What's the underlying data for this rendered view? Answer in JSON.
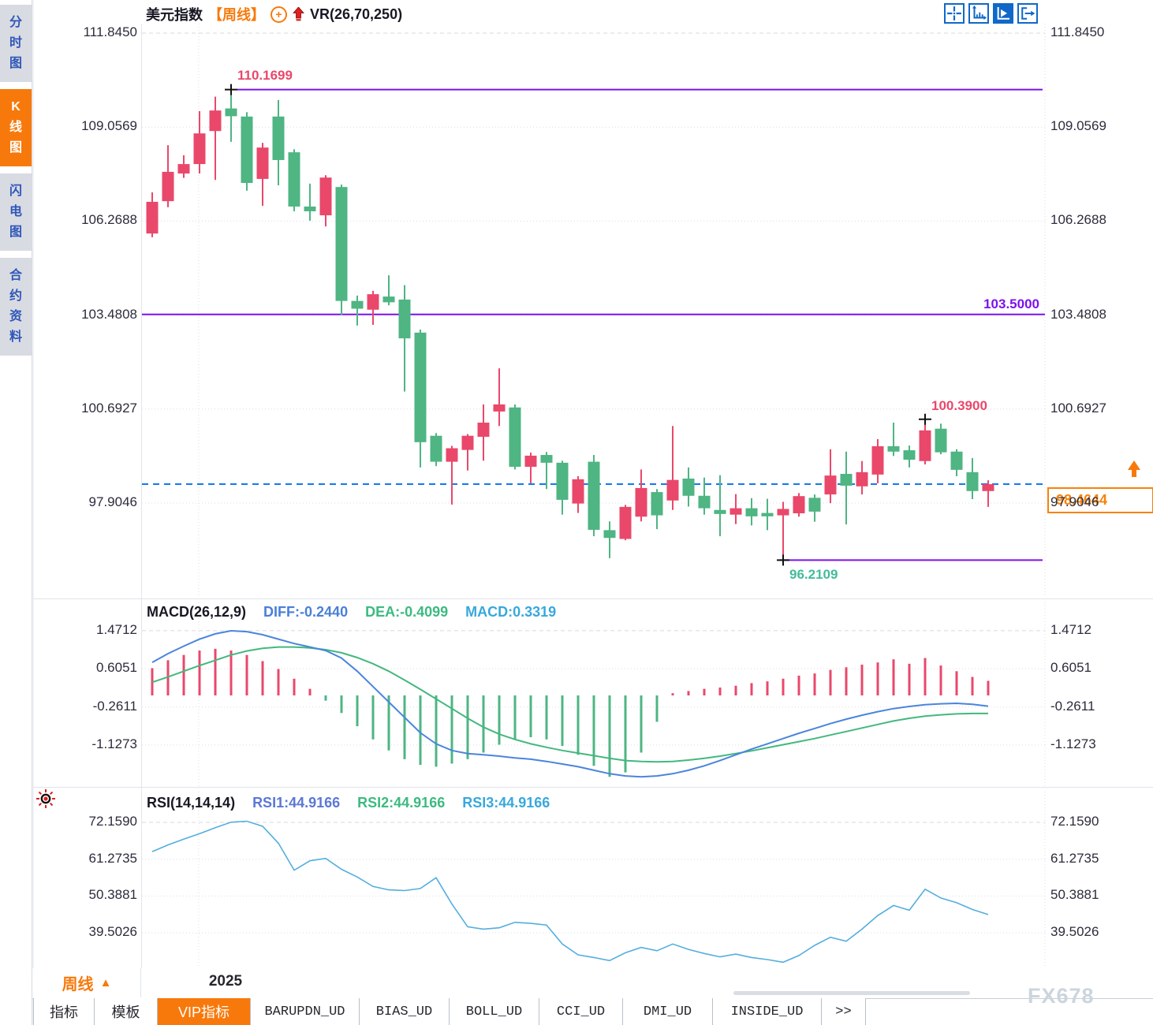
{
  "header": {
    "symbol": "美元指数",
    "period": "【周线】",
    "vr": "VR(26,70,250)"
  },
  "toolbar": {
    "icons": [
      {
        "name": "crosshair-icon",
        "active": false
      },
      {
        "name": "axis-scale-icon",
        "active": false
      },
      {
        "name": "auto-scroll-icon",
        "active": true
      },
      {
        "name": "jump-latest-icon",
        "active": false
      }
    ]
  },
  "sidebar": {
    "items": [
      {
        "label": "分时图",
        "active": false
      },
      {
        "label": "K线图",
        "active": true
      },
      {
        "label": "闪电图",
        "active": false
      },
      {
        "label": "合约资料",
        "active": false
      }
    ]
  },
  "main_chart": {
    "y_axis_labels": [
      "111.8450",
      "109.0569",
      "106.2688",
      "103.4808",
      "100.6927",
      "97.9046"
    ],
    "labels": {
      "resistance": "110.1699",
      "mid": "103.5000",
      "support": "96.2109",
      "swing_high": "100.3900",
      "last_price": "98.4644"
    }
  },
  "macd": {
    "title": "MACD(26,12,9)",
    "diff_label": "DIFF:-0.2440",
    "dea_label": "DEA:-0.4099",
    "macd_label": "MACD:0.3319",
    "y_axis_labels": [
      "1.4712",
      "0.6051",
      "-0.2611",
      "-1.1273"
    ]
  },
  "rsi": {
    "title": "RSI(14,14,14)",
    "r1": "RSI1:44.9166",
    "r2": "RSI2:44.9166",
    "r3": "RSI3:44.9166",
    "y_axis_labels": [
      "72.1590",
      "61.2735",
      "50.3881",
      "39.5026"
    ]
  },
  "bottom": {
    "period": "周线",
    "year": "2025",
    "tabs": [
      {
        "label": "指标",
        "active": false,
        "mono": false
      },
      {
        "label": "模板",
        "active": false,
        "mono": false
      },
      {
        "label": "VIP指标",
        "active": true,
        "mono": false
      },
      {
        "label": "BARUPDN_UD",
        "active": false,
        "mono": true
      },
      {
        "label": "BIAS_UD",
        "active": false,
        "mono": true
      },
      {
        "label": "BOLL_UD",
        "active": false,
        "mono": true
      },
      {
        "label": "CCI_UD",
        "active": false,
        "mono": true
      },
      {
        "label": "DMI_UD",
        "active": false,
        "mono": true
      },
      {
        "label": "INSIDE_UD",
        "active": false,
        "mono": true
      },
      {
        "label": ">>",
        "active": false,
        "mono": true
      }
    ]
  },
  "watermark": "FX678",
  "colors": {
    "up": "#e9486b",
    "down": "#4eb583",
    "purple": "#7c10ee",
    "dash_blue": "#1478f0",
    "orange": "#f8790b",
    "diff_blue": "#4a85dc",
    "dea_green": "#43b87e",
    "rsi_line": "#54aede"
  },
  "chart_data": {
    "type": "candlestick",
    "symbol": "美元指数",
    "period": "周线",
    "price_axis": [
      111.845,
      109.0569,
      106.2688,
      103.4808,
      100.6927,
      97.9046
    ],
    "x_axis_labels": [
      "2025"
    ],
    "levels": {
      "resistance": 110.1699,
      "mid": 103.5,
      "support": 96.2109,
      "swing_high": 100.39,
      "last_price": 98.4644
    },
    "candles_ohlc": [
      [
        105.9,
        107.12,
        105.79,
        106.84
      ],
      [
        106.86,
        108.52,
        106.68,
        107.73
      ],
      [
        107.68,
        108.22,
        107.55,
        107.96
      ],
      [
        107.96,
        109.53,
        107.68,
        108.87
      ],
      [
        108.94,
        109.96,
        107.49,
        109.55
      ],
      [
        109.61,
        110.1699,
        108.62,
        109.38
      ],
      [
        109.37,
        109.5,
        107.17,
        107.4
      ],
      [
        107.52,
        108.59,
        106.72,
        108.45
      ],
      [
        109.37,
        109.86,
        107.33,
        108.08
      ],
      [
        108.31,
        108.4,
        106.56,
        106.7
      ],
      [
        106.7,
        107.38,
        106.28,
        106.56
      ],
      [
        106.44,
        107.63,
        106.11,
        107.56
      ],
      [
        107.28,
        107.35,
        103.48,
        103.9
      ],
      [
        103.9,
        104.06,
        103.17,
        103.67
      ],
      [
        103.64,
        104.2,
        103.19,
        104.1
      ],
      [
        104.03,
        104.66,
        103.77,
        103.86
      ],
      [
        103.94,
        104.37,
        101.21,
        102.79
      ],
      [
        102.96,
        103.05,
        98.96,
        99.71
      ],
      [
        99.9,
        99.98,
        99.0,
        99.13
      ],
      [
        99.13,
        99.6,
        97.86,
        99.53
      ],
      [
        99.48,
        99.95,
        98.87,
        99.9
      ],
      [
        99.87,
        100.83,
        99.16,
        100.29
      ],
      [
        100.62,
        101.9,
        100.19,
        100.83
      ],
      [
        100.74,
        100.83,
        98.9,
        98.98
      ],
      [
        98.98,
        99.4,
        98.49,
        99.31
      ],
      [
        99.33,
        99.42,
        98.32,
        99.1
      ],
      [
        99.1,
        99.16,
        97.56,
        98.0
      ],
      [
        97.89,
        98.7,
        97.61,
        98.61
      ],
      [
        99.13,
        99.33,
        96.92,
        97.11
      ],
      [
        97.1,
        97.36,
        96.27,
        96.87
      ],
      [
        96.84,
        97.85,
        96.8,
        97.79
      ],
      [
        97.5,
        98.9,
        97.36,
        98.35
      ],
      [
        98.23,
        98.32,
        97.13,
        97.54
      ],
      [
        97.98,
        100.19,
        97.7,
        98.59
      ],
      [
        98.63,
        98.96,
        97.8,
        98.12
      ],
      [
        98.12,
        98.66,
        97.56,
        97.75
      ],
      [
        97.7,
        98.73,
        96.92,
        97.58
      ],
      [
        97.56,
        98.17,
        97.28,
        97.75
      ],
      [
        97.75,
        98.05,
        97.24,
        97.51
      ],
      [
        97.61,
        98.03,
        97.1,
        97.51
      ],
      [
        97.54,
        97.94,
        96.2109,
        97.73
      ],
      [
        97.6,
        98.2,
        97.5,
        98.11
      ],
      [
        98.06,
        98.16,
        97.35,
        97.65
      ],
      [
        98.16,
        99.5,
        97.9,
        98.72
      ],
      [
        98.77,
        99.43,
        97.27,
        98.42
      ],
      [
        98.4,
        99.15,
        98.16,
        98.82
      ],
      [
        98.75,
        99.8,
        98.49,
        99.59
      ],
      [
        99.59,
        100.29,
        99.3,
        99.43
      ],
      [
        99.47,
        99.61,
        98.96,
        99.19
      ],
      [
        99.15,
        100.39,
        99.05,
        100.06
      ],
      [
        100.11,
        100.26,
        99.35,
        99.41
      ],
      [
        99.43,
        99.5,
        98.7,
        98.89
      ],
      [
        98.82,
        99.24,
        98.02,
        98.26
      ],
      [
        98.26,
        98.58,
        97.79,
        98.4644
      ]
    ],
    "macd": {
      "params": [
        26,
        12,
        9
      ],
      "diff": -0.244,
      "dea": -0.4099,
      "macd": 0.3319,
      "axis": [
        1.4712,
        0.6051,
        -0.2611,
        -1.1273
      ],
      "histogram": [
        0.62,
        0.8,
        0.92,
        1.02,
        1.06,
        1.02,
        0.92,
        0.78,
        0.6,
        0.38,
        0.15,
        -0.12,
        -0.4,
        -0.7,
        -1.0,
        -1.25,
        -1.45,
        -1.58,
        -1.62,
        -1.55,
        -1.45,
        -1.3,
        -1.12,
        -1.0,
        -0.95,
        -1.0,
        -1.15,
        -1.35,
        -1.6,
        -1.85,
        -1.75,
        -1.3,
        -0.6,
        0.05,
        0.1,
        0.15,
        0.18,
        0.22,
        0.28,
        0.32,
        0.38,
        0.45,
        0.5,
        0.58,
        0.64,
        0.7,
        0.75,
        0.82,
        0.72,
        0.85,
        0.68,
        0.55,
        0.42,
        0.3319
      ],
      "diff_line": [
        0.75,
        0.95,
        1.12,
        1.28,
        1.4,
        1.47,
        1.45,
        1.38,
        1.28,
        1.18,
        1.1,
        1.02,
        0.85,
        0.55,
        0.2,
        -0.15,
        -0.5,
        -0.85,
        -1.1,
        -1.25,
        -1.32,
        -1.35,
        -1.38,
        -1.42,
        -1.45,
        -1.5,
        -1.56,
        -1.62,
        -1.7,
        -1.78,
        -1.83,
        -1.85,
        -1.83,
        -1.78,
        -1.7,
        -1.6,
        -1.48,
        -1.35,
        -1.22,
        -1.1,
        -0.98,
        -0.86,
        -0.75,
        -0.64,
        -0.54,
        -0.45,
        -0.37,
        -0.3,
        -0.25,
        -0.21,
        -0.19,
        -0.18,
        -0.2,
        -0.244
      ],
      "dea_line": [
        0.3,
        0.42,
        0.55,
        0.68,
        0.8,
        0.92,
        1.01,
        1.07,
        1.1,
        1.1,
        1.08,
        1.04,
        0.97,
        0.86,
        0.72,
        0.55,
        0.35,
        0.14,
        -0.08,
        -0.3,
        -0.52,
        -0.72,
        -0.88,
        -1.0,
        -1.1,
        -1.18,
        -1.25,
        -1.31,
        -1.37,
        -1.43,
        -1.48,
        -1.5,
        -1.51,
        -1.5,
        -1.47,
        -1.43,
        -1.38,
        -1.32,
        -1.26,
        -1.19,
        -1.12,
        -1.05,
        -0.98,
        -0.9,
        -0.82,
        -0.74,
        -0.66,
        -0.58,
        -0.52,
        -0.47,
        -0.44,
        -0.42,
        -0.41,
        -0.4099
      ]
    },
    "rsi": {
      "params": [
        14,
        14,
        14
      ],
      "rsi1": 44.9166,
      "rsi2": 44.9166,
      "rsi3": 44.9166,
      "axis": [
        72.159,
        61.2735,
        50.3881,
        39.5026
      ],
      "values": [
        63.5,
        65.5,
        67.2,
        68.8,
        70.6,
        72.2,
        72.5,
        71.0,
        66.0,
        58.0,
        60.8,
        61.5,
        58.3,
        56.0,
        53.2,
        52.2,
        52.0,
        52.6,
        55.8,
        48.0,
        41.3,
        40.6,
        41.0,
        42.6,
        42.3,
        41.8,
        36.2,
        33.0,
        32.2,
        31.3,
        33.6,
        35.2,
        34.2,
        36.2,
        34.6,
        33.4,
        32.4,
        33.2,
        32.2,
        31.6,
        30.8,
        32.8,
        35.8,
        38.2,
        37.0,
        40.6,
        44.6,
        47.6,
        46.2,
        52.4,
        49.8,
        48.4,
        46.4,
        44.9166
      ]
    }
  }
}
